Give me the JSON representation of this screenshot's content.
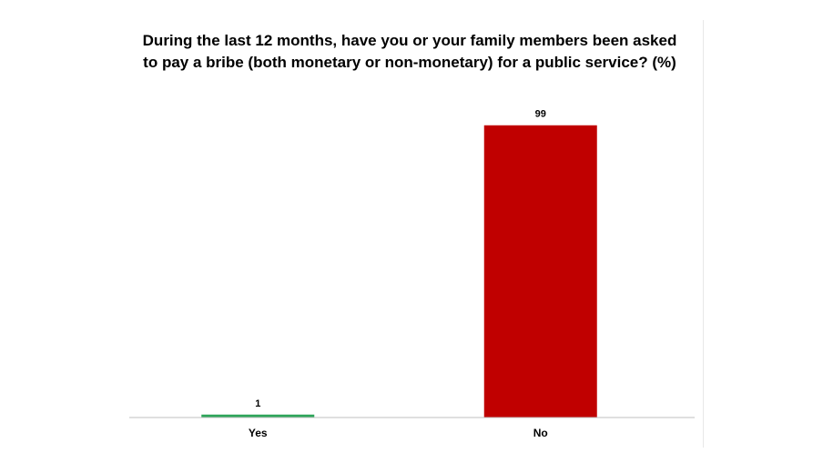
{
  "chart_data": {
    "type": "bar",
    "title": "During the last 12 months, have you or your family members been asked to pay a bribe (both monetary or non-monetary) for a public service? (%)",
    "categories": [
      "Yes",
      "No"
    ],
    "values": [
      1,
      99
    ],
    "value_labels": [
      "1",
      "99"
    ],
    "colors": [
      "#2ea55a",
      "#c00000"
    ],
    "ylim": [
      0,
      100
    ],
    "grid": false,
    "legend": "none"
  }
}
